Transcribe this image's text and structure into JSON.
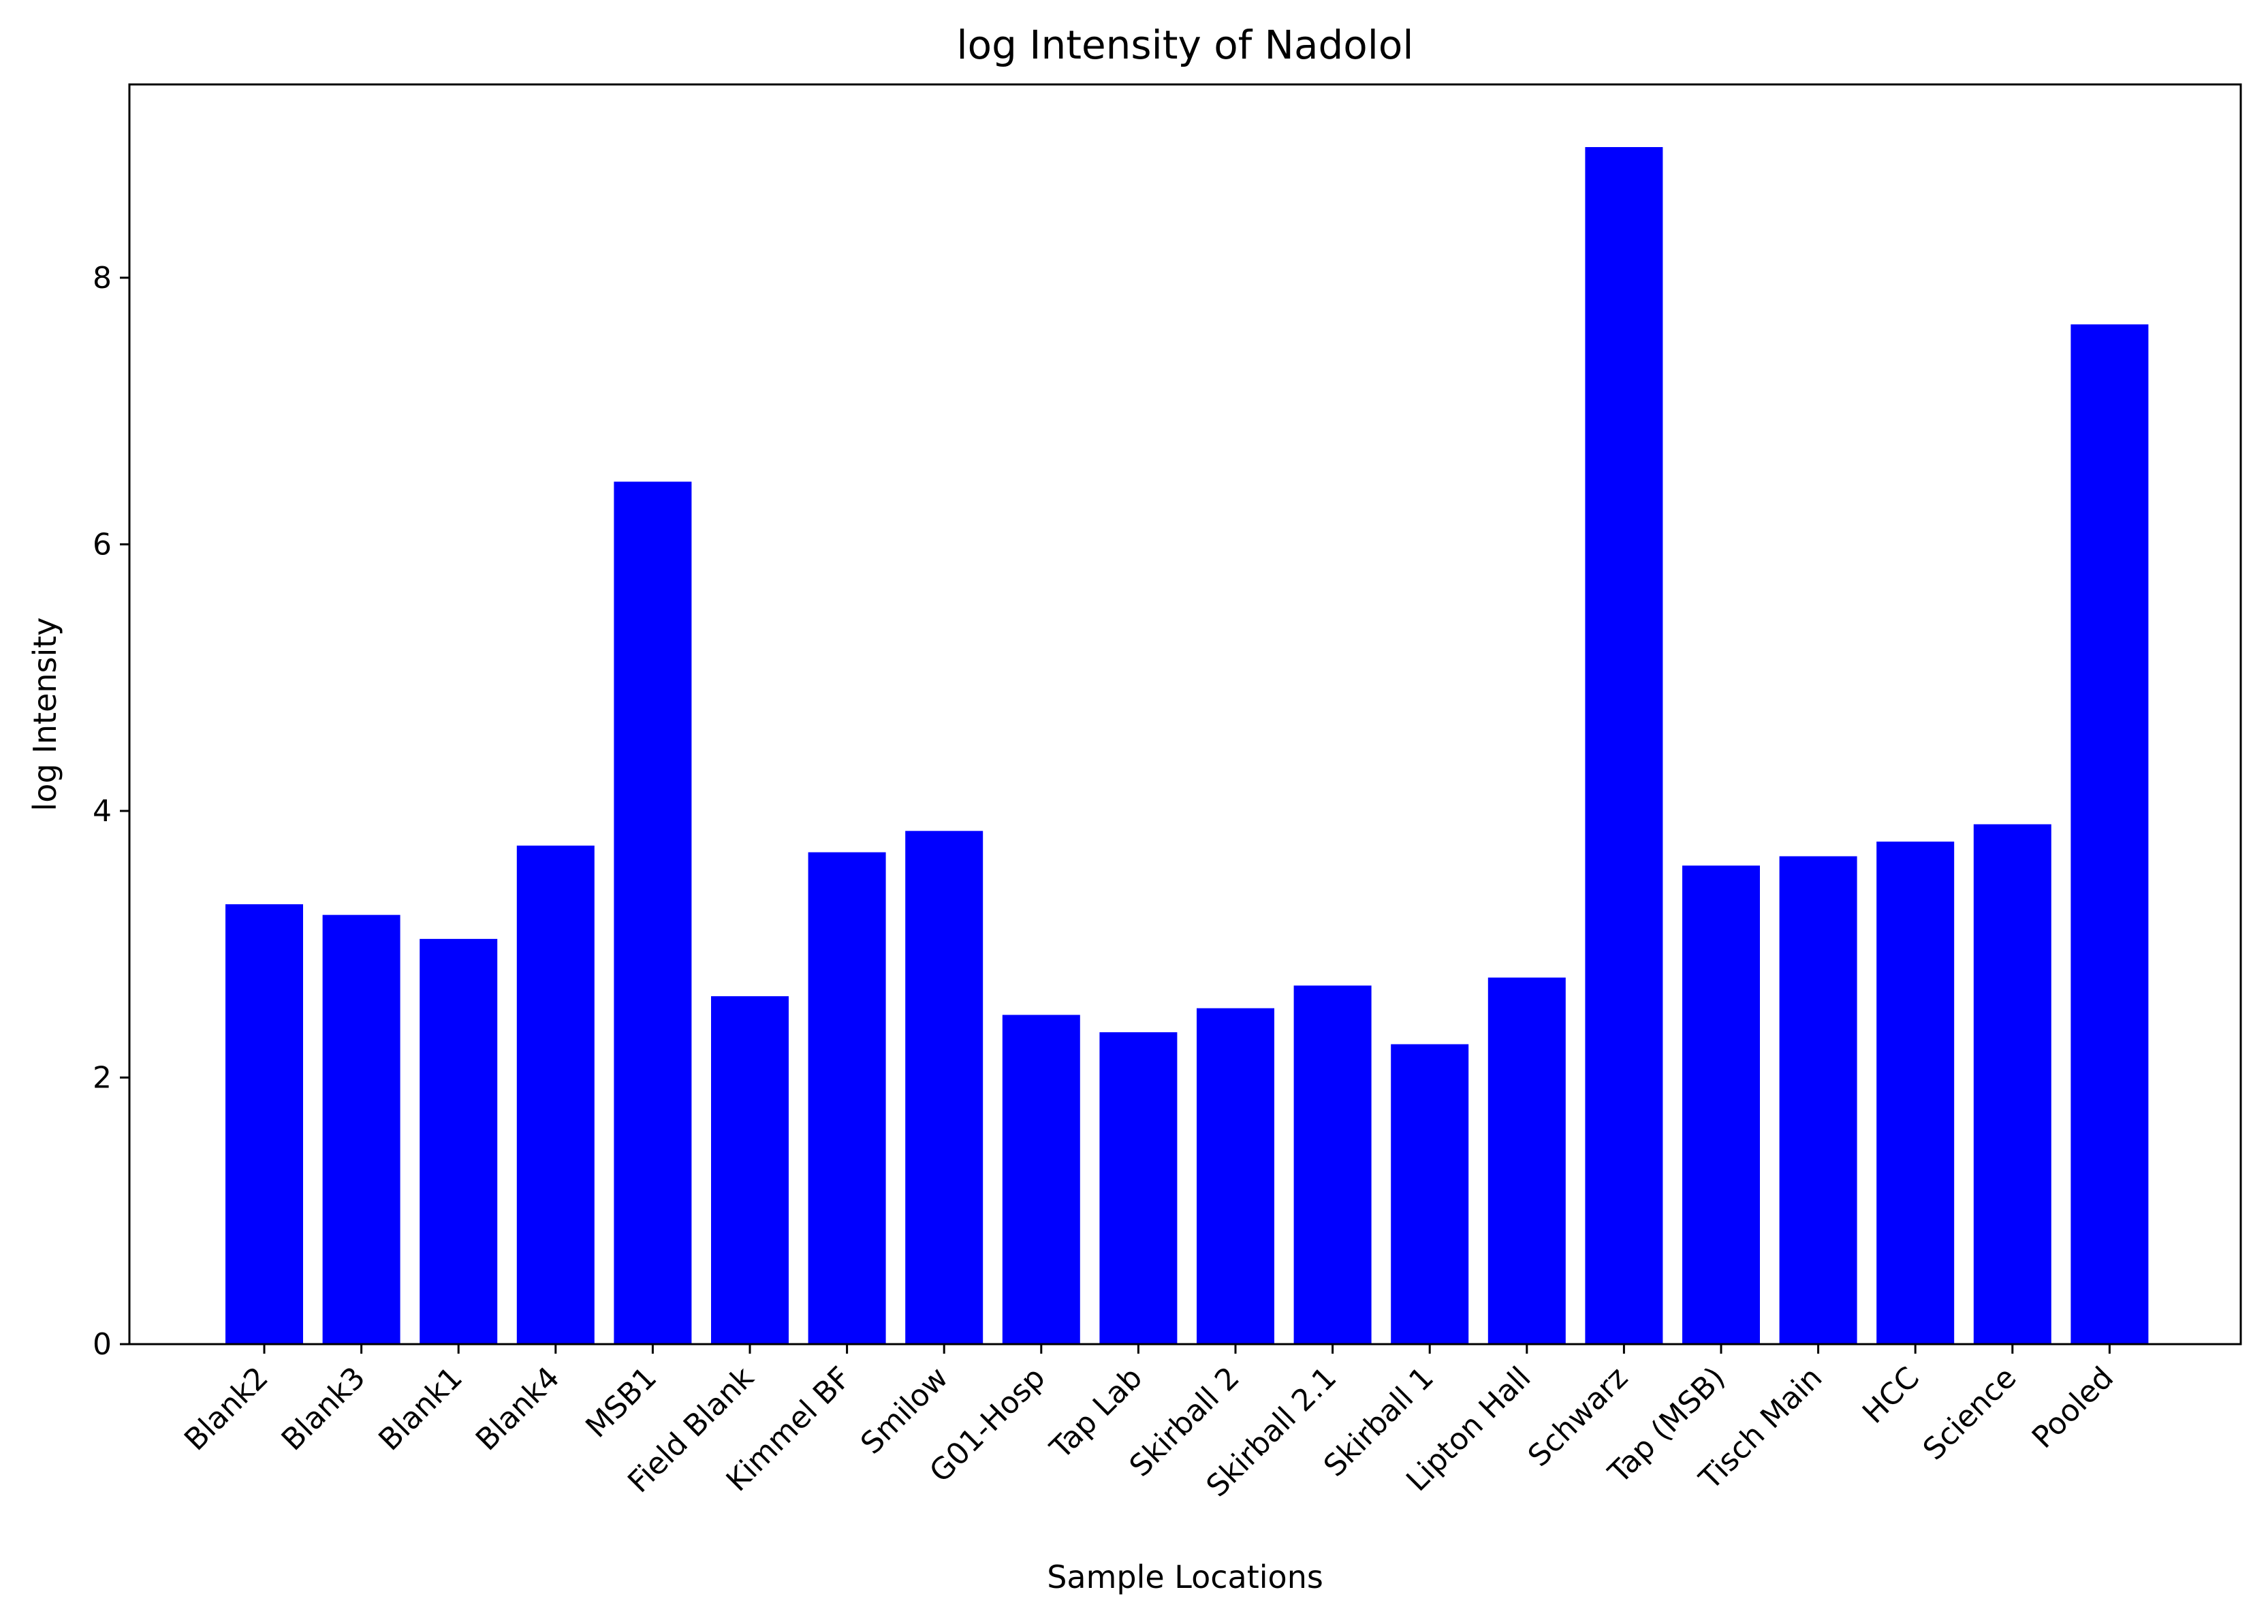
{
  "chart_data": {
    "type": "bar",
    "title": "log Intensity of Nadolol",
    "xlabel": "Sample Locations",
    "ylabel": "log Intensity",
    "ylim": [
      0,
      9.45
    ],
    "yticks": [
      0,
      2,
      4,
      6,
      8
    ],
    "grid": false,
    "bar_color": "#0000ff",
    "categories": [
      "Blank2",
      "Blank3",
      "Blank1",
      "Blank4",
      "MSB1",
      "Field Blank",
      "Kimmel BF",
      "Smilow",
      "G01-Hosp",
      "Tap Lab",
      "Skirball 2",
      "Skirball 2.1",
      "Skirball 1",
      "Lipton Hall",
      "Schwarz",
      "Tap (MSB)",
      "Tisch Main",
      "HCC",
      "Science",
      "Pooled"
    ],
    "values": [
      3.3,
      3.22,
      3.04,
      3.74,
      6.47,
      2.61,
      3.69,
      3.85,
      2.47,
      2.34,
      2.52,
      2.69,
      2.25,
      2.75,
      8.98,
      3.59,
      3.66,
      3.77,
      3.9,
      7.65
    ]
  }
}
